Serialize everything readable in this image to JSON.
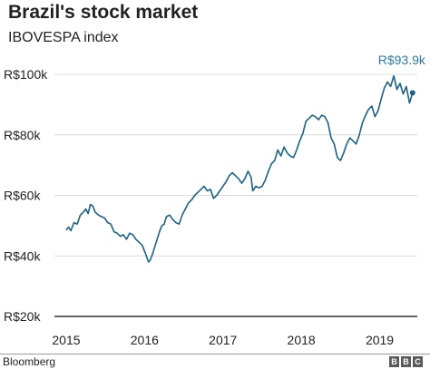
{
  "header": {
    "title": "Brazil's stock market",
    "subtitle": "IBOVESPA index"
  },
  "footer": {
    "source": "Bloomberg",
    "logo_letters": [
      "B",
      "B",
      "C"
    ]
  },
  "colors": {
    "line": "#1c6286",
    "end_label": "#2a7aa3",
    "gridline": "#dcdcdc",
    "baseline": "#333333",
    "text": "#222222"
  },
  "chart_data": {
    "type": "line",
    "title": "Brazil's stock market",
    "subtitle": "IBOVESPA index",
    "xlabel": "",
    "ylabel": "",
    "unit": "R$ thousand",
    "xlim": [
      2014.85,
      2019.48
    ],
    "ylim": [
      20,
      100
    ],
    "x_ticks": [
      2015,
      2016,
      2017,
      2018,
      2019
    ],
    "x_tick_labels": [
      "2015",
      "2016",
      "2017",
      "2018",
      "2019"
    ],
    "y_ticks": [
      20,
      40,
      60,
      80,
      100
    ],
    "y_tick_labels": [
      "R$20k",
      "R$40k",
      "R$60k",
      "R$80k",
      "R$100k"
    ],
    "grid": true,
    "legend": "none",
    "end_label": "R$93.9k",
    "series": [
      {
        "x": [
          2015.0,
          2015.03,
          2015.06,
          2015.1,
          2015.14,
          2015.18,
          2015.22,
          2015.25,
          2015.28,
          2015.31,
          2015.34,
          2015.37,
          2015.41,
          2015.45,
          2015.49,
          2015.53,
          2015.57,
          2015.61,
          2015.65,
          2015.69,
          2015.73,
          2015.77,
          2015.81,
          2015.85,
          2015.89,
          2015.93,
          2015.97,
          2016.0,
          2016.03,
          2016.05,
          2016.07,
          2016.1,
          2016.13,
          2016.16,
          2016.19,
          2016.22,
          2016.25,
          2016.28,
          2016.32,
          2016.36,
          2016.4,
          2016.44,
          2016.48,
          2016.52,
          2016.56,
          2016.6,
          2016.64,
          2016.68,
          2016.72,
          2016.76,
          2016.8,
          2016.84,
          2016.88,
          2016.92,
          2016.96,
          2017.0,
          2017.04,
          2017.08,
          2017.12,
          2017.16,
          2017.2,
          2017.24,
          2017.28,
          2017.32,
          2017.36,
          2017.38,
          2017.42,
          2017.46,
          2017.5,
          2017.54,
          2017.58,
          2017.62,
          2017.66,
          2017.7,
          2017.74,
          2017.78,
          2017.82,
          2017.86,
          2017.9,
          2017.94,
          2017.98,
          2018.02,
          2018.06,
          2018.1,
          2018.14,
          2018.18,
          2018.22,
          2018.26,
          2018.3,
          2018.34,
          2018.38,
          2018.42,
          2018.46,
          2018.5,
          2018.54,
          2018.58,
          2018.62,
          2018.66,
          2018.7,
          2018.74,
          2018.78,
          2018.82,
          2018.86,
          2018.9,
          2018.94,
          2018.98,
          2019.02,
          2019.06,
          2019.1,
          2019.14,
          2019.18,
          2019.22,
          2019.26,
          2019.3,
          2019.34,
          2019.38,
          2019.42
        ],
        "values": [
          48.5,
          49.5,
          48.3,
          51.0,
          50.5,
          53.5,
          54.5,
          55.5,
          54.0,
          57.0,
          56.5,
          54.5,
          53.5,
          53.0,
          52.5,
          51.0,
          50.5,
          48.0,
          47.5,
          46.5,
          47.0,
          45.5,
          47.5,
          47.0,
          45.5,
          44.5,
          43.5,
          41.5,
          39.5,
          38.0,
          38.5,
          40.5,
          43.0,
          45.5,
          48.0,
          50.0,
          50.5,
          53.0,
          53.5,
          52.0,
          51.0,
          50.5,
          53.5,
          55.5,
          57.5,
          58.5,
          60.0,
          61.0,
          62.0,
          63.0,
          61.5,
          62.0,
          59.0,
          60.0,
          61.5,
          63.0,
          64.5,
          66.5,
          67.5,
          66.5,
          65.5,
          64.0,
          65.5,
          68.0,
          66.0,
          61.5,
          63.0,
          62.5,
          63.0,
          65.0,
          68.0,
          70.5,
          71.5,
          75.0,
          73.0,
          76.0,
          74.0,
          73.0,
          72.5,
          75.0,
          78.0,
          80.5,
          84.5,
          85.5,
          86.5,
          86.0,
          85.0,
          86.5,
          86.0,
          84.0,
          79.0,
          77.0,
          72.5,
          71.5,
          74.0,
          77.0,
          79.0,
          78.0,
          77.0,
          80.0,
          84.0,
          86.5,
          88.5,
          89.5,
          86.0,
          88.0,
          92.0,
          95.5,
          97.5,
          96.0,
          99.5,
          95.0,
          97.0,
          93.5,
          96.0,
          90.5,
          93.9
        ]
      }
    ]
  }
}
